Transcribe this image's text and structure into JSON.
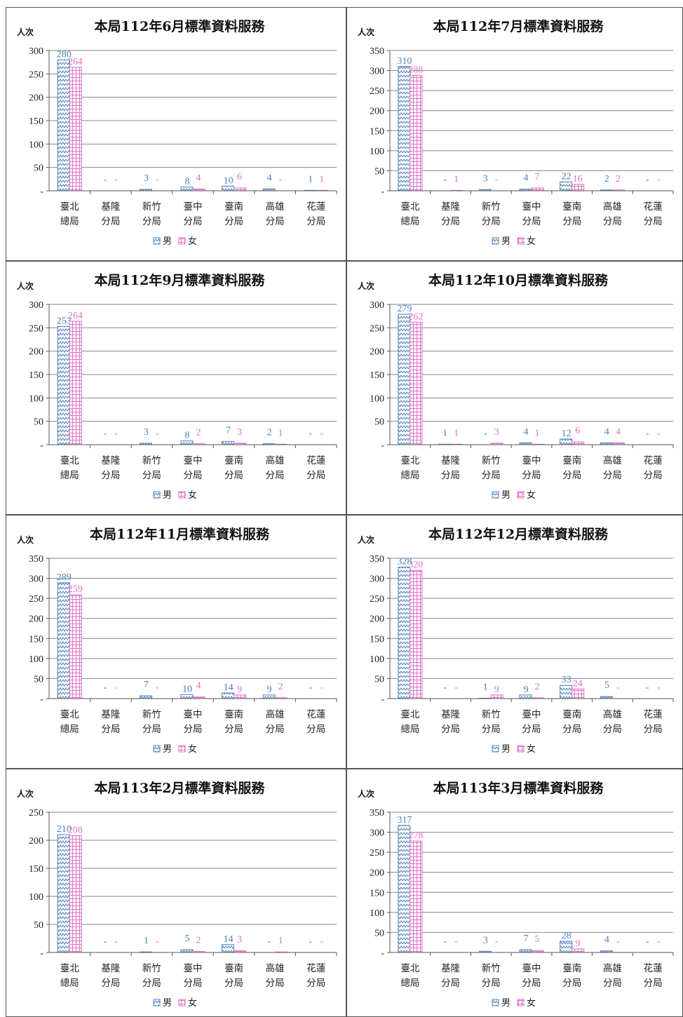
{
  "colors": {
    "male": "#4a7ebb",
    "female": "#e070c8",
    "grid": "#868686",
    "border": "#555555"
  },
  "legend": {
    "male": "男",
    "female": "女"
  },
  "chart_data": [
    {
      "type": "bar",
      "title": "本局112年6月標準資料服務",
      "ylabel": "人次",
      "categories": [
        "臺北總局",
        "基隆分局",
        "新竹分局",
        "臺中分局",
        "臺南分局",
        "高雄分局",
        "花蓮分局"
      ],
      "ylim": [
        0,
        300
      ],
      "yticks": [
        "-",
        "50",
        "100",
        "150",
        "200",
        "250",
        "300"
      ],
      "series": [
        {
          "name": "男",
          "values": [
            280,
            0,
            3,
            8,
            10,
            4,
            1
          ],
          "labels": [
            "280",
            "-",
            "3",
            "8",
            "10",
            "4",
            "1"
          ]
        },
        {
          "name": "女",
          "values": [
            264,
            0,
            0,
            4,
            6,
            0,
            1
          ],
          "labels": [
            "264",
            "-",
            "-",
            "4",
            "6",
            "-",
            "1"
          ]
        }
      ],
      "legend_position": "bottom"
    },
    {
      "type": "bar",
      "title": "本局112年7月標準資料服務",
      "ylabel": "人次",
      "categories": [
        "臺北總局",
        "基隆分局",
        "新竹分局",
        "臺中分局",
        "臺南分局",
        "高雄分局",
        "花蓮分局"
      ],
      "ylim": [
        0,
        350
      ],
      "yticks": [
        "-",
        "50",
        "100",
        "150",
        "200",
        "250",
        "300",
        "350"
      ],
      "series": [
        {
          "name": "男",
          "values": [
            310,
            0,
            3,
            4,
            22,
            2,
            0
          ],
          "labels": [
            "310",
            "-",
            "3",
            "4",
            "22",
            "2",
            "-"
          ]
        },
        {
          "name": "女",
          "values": [
            288,
            1,
            0,
            7,
            16,
            2,
            0
          ],
          "labels": [
            "288",
            "1",
            "-",
            "7",
            "16",
            "2",
            "-"
          ]
        }
      ],
      "legend_position": "bottom"
    },
    {
      "type": "bar",
      "title": "本局112年9月標準資料服務",
      "ylabel": "人次",
      "categories": [
        "臺北總局",
        "基隆分局",
        "新竹分局",
        "臺中分局",
        "臺南分局",
        "高雄分局",
        "花蓮分局"
      ],
      "ylim": [
        0,
        300
      ],
      "yticks": [
        "-",
        "50",
        "100",
        "150",
        "200",
        "250",
        "300"
      ],
      "series": [
        {
          "name": "男",
          "values": [
            253,
            0,
            3,
            8,
            7,
            2,
            0
          ],
          "labels": [
            "253",
            "-",
            "3",
            "8",
            "7",
            "2",
            "-"
          ]
        },
        {
          "name": "女",
          "values": [
            264,
            0,
            0,
            2,
            3,
            1,
            0
          ],
          "labels": [
            "264",
            "-",
            "-",
            "2",
            "3",
            "1",
            "-"
          ]
        }
      ],
      "legend_position": "bottom"
    },
    {
      "type": "bar",
      "title": "本局112年10月標準資料服務",
      "ylabel": "人次",
      "categories": [
        "臺北總局",
        "基隆分局",
        "新竹分局",
        "臺中分局",
        "臺南分局",
        "高雄分局",
        "花蓮分局"
      ],
      "ylim": [
        0,
        300
      ],
      "yticks": [
        "-",
        "50",
        "100",
        "150",
        "200",
        "250",
        "300"
      ],
      "series": [
        {
          "name": "男",
          "values": [
            279,
            1,
            0,
            4,
            12,
            4,
            0
          ],
          "labels": [
            "279",
            "1",
            "-",
            "4",
            "12",
            "4",
            "-"
          ]
        },
        {
          "name": "女",
          "values": [
            262,
            1,
            3,
            1,
            6,
            4,
            0
          ],
          "labels": [
            "262",
            "1",
            "3",
            "1",
            "6",
            "4",
            "-"
          ]
        }
      ],
      "legend_position": "bottom"
    },
    {
      "type": "bar",
      "title": "本局112年11月標準資料服務",
      "ylabel": "人次",
      "categories": [
        "臺北總局",
        "基隆分局",
        "新竹分局",
        "臺中分局",
        "臺南分局",
        "高雄分局",
        "花蓮分局"
      ],
      "ylim": [
        0,
        350
      ],
      "yticks": [
        "-",
        "50",
        "100",
        "150",
        "200",
        "250",
        "300",
        "350"
      ],
      "series": [
        {
          "name": "男",
          "values": [
            289,
            0,
            7,
            10,
            14,
            9,
            0
          ],
          "labels": [
            "289",
            "-",
            "7",
            "10",
            "14",
            "9",
            "-"
          ]
        },
        {
          "name": "女",
          "values": [
            259,
            0,
            0,
            4,
            9,
            2,
            0
          ],
          "labels": [
            "259",
            "-",
            "-",
            "4",
            "9",
            "2",
            "-"
          ]
        }
      ],
      "legend_position": "bottom"
    },
    {
      "type": "bar",
      "title": "本局112年12月標準資料服務",
      "ylabel": "人次",
      "categories": [
        "臺北總局",
        "基隆分局",
        "新竹分局",
        "臺中分局",
        "臺南分局",
        "高雄分局",
        "花蓮分局"
      ],
      "ylim": [
        0,
        350
      ],
      "yticks": [
        "-",
        "50",
        "100",
        "150",
        "200",
        "250",
        "300",
        "350"
      ],
      "series": [
        {
          "name": "男",
          "values": [
            328,
            0,
            1,
            9,
            33,
            5,
            0
          ],
          "labels": [
            "328",
            "-",
            "1",
            "9",
            "33",
            "5",
            "-"
          ]
        },
        {
          "name": "女",
          "values": [
            320,
            0,
            9,
            2,
            24,
            0,
            0
          ],
          "labels": [
            "320",
            "-",
            "9",
            "2",
            "24",
            "-",
            "-"
          ]
        }
      ],
      "legend_position": "bottom"
    },
    {
      "type": "bar",
      "title": "本局113年2月標準資料服務",
      "ylabel": "人次",
      "categories": [
        "臺北總局",
        "基隆分局",
        "新竹分局",
        "臺中分局",
        "臺南分局",
        "高雄分局",
        "花蓮分局"
      ],
      "ylim": [
        0,
        250
      ],
      "yticks": [
        "-",
        "50",
        "100",
        "150",
        "200",
        "250"
      ],
      "series": [
        {
          "name": "男",
          "values": [
            210,
            0,
            1,
            5,
            14,
            0,
            0
          ],
          "labels": [
            "210",
            "-",
            "1",
            "5",
            "14",
            "-",
            "-"
          ]
        },
        {
          "name": "女",
          "values": [
            208,
            0,
            0,
            2,
            3,
            1,
            0
          ],
          "labels": [
            "208",
            "-",
            "-",
            "2",
            "3",
            "1",
            "-"
          ]
        }
      ],
      "legend_position": "bottom"
    },
    {
      "type": "bar",
      "title": "本局113年3月標準資料服務",
      "ylabel": "人次",
      "categories": [
        "臺北總局",
        "基隆分局",
        "新竹分局",
        "臺中分局",
        "臺南分局",
        "高雄分局",
        "花蓮分局"
      ],
      "ylim": [
        0,
        350
      ],
      "yticks": [
        "-",
        "50",
        "100",
        "150",
        "200",
        "250",
        "300",
        "350"
      ],
      "series": [
        {
          "name": "男",
          "values": [
            317,
            0,
            3,
            7,
            28,
            4,
            0
          ],
          "labels": [
            "317",
            "-",
            "3",
            "7",
            "28",
            "4",
            "-"
          ]
        },
        {
          "name": "女",
          "values": [
            278,
            0,
            0,
            5,
            9,
            0,
            0
          ],
          "labels": [
            "278",
            "-",
            "-",
            "5",
            "9",
            "-",
            "-"
          ]
        }
      ],
      "legend_position": "bottom"
    }
  ]
}
